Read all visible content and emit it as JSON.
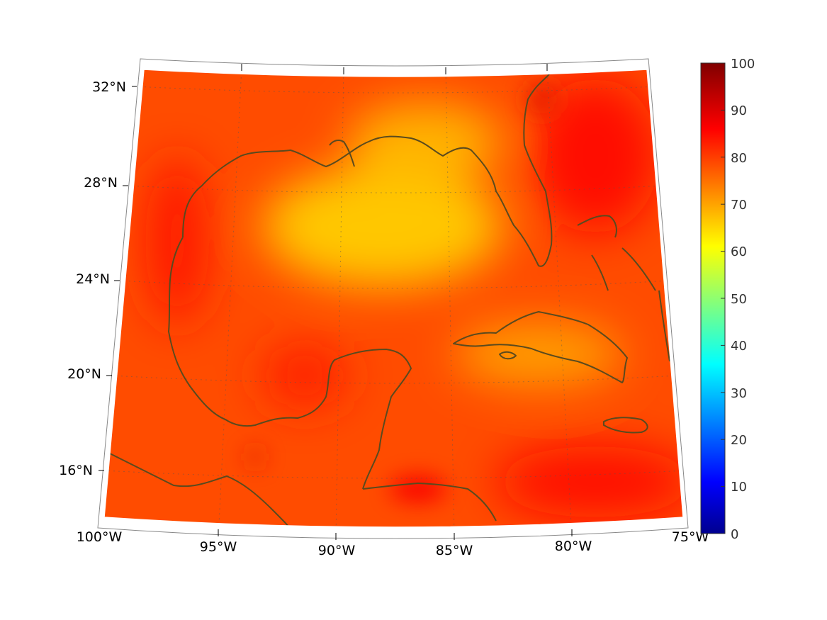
{
  "map": {
    "projection": "conic",
    "lat_range": [
      14,
      33
    ],
    "lon_range": [
      -100,
      -75
    ],
    "lat_ticks": [
      {
        "value": 32,
        "label": "32°N"
      },
      {
        "value": 28,
        "label": "28°N"
      },
      {
        "value": 24,
        "label": "24°N"
      },
      {
        "value": 20,
        "label": "20°N"
      },
      {
        "value": 16,
        "label": "16°N"
      }
    ],
    "lon_ticks": [
      {
        "value": -100,
        "label": "100°W"
      },
      {
        "value": -95,
        "label": "95°W"
      },
      {
        "value": -90,
        "label": "90°W"
      },
      {
        "value": -85,
        "label": "85°W"
      },
      {
        "value": -80,
        "label": "80°W"
      },
      {
        "value": -75,
        "label": "75°W"
      }
    ],
    "coastline_color": "#5a4a1e",
    "grid": "dotted"
  },
  "colorbar": {
    "range": [
      0,
      100
    ],
    "colormap": "jet",
    "ticks": [
      "100",
      "90",
      "80",
      "70",
      "60",
      "50",
      "40",
      "30",
      "20",
      "10",
      "0"
    ]
  },
  "field": {
    "background_value": 80,
    "regions": [
      {
        "name": "central-gulf",
        "value": 68
      },
      {
        "name": "northeast-gulf",
        "value": 70
      },
      {
        "name": "cuba-interior",
        "value": 72
      },
      {
        "name": "east-mexico-coast",
        "value": 85
      },
      {
        "name": "yucatan-west",
        "value": 84
      },
      {
        "name": "caribbean-south",
        "value": 86
      },
      {
        "name": "northeast-atlantic",
        "value": 86
      },
      {
        "name": "honduras-coast",
        "value": 88
      }
    ]
  }
}
